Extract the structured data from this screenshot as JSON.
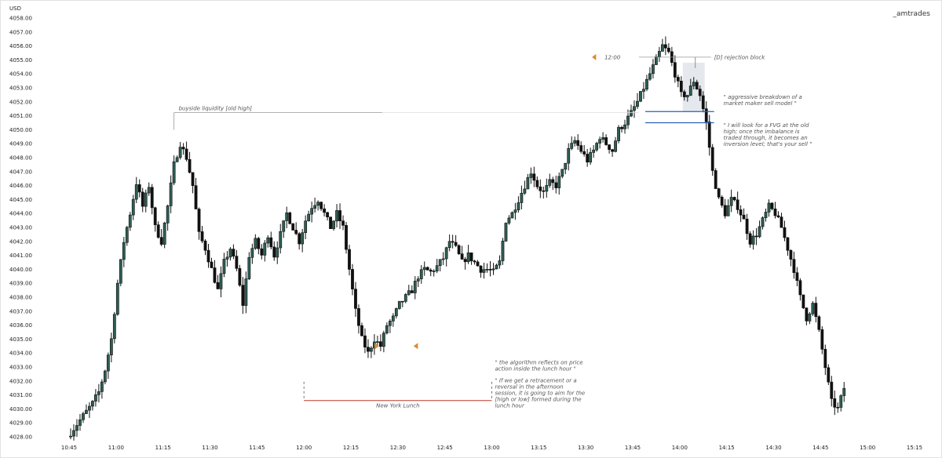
{
  "chart_data": {
    "type": "candlestick",
    "currency": "USD",
    "watermark": "_amtrades",
    "ylim": [
      4028,
      4058
    ],
    "y_ticks": [
      "4028.00",
      "4029.00",
      "4030.00",
      "4031.00",
      "4032.00",
      "4033.00",
      "4034.00",
      "4035.00",
      "4036.00",
      "4037.00",
      "4038.00",
      "4039.00",
      "4040.00",
      "4041.00",
      "4042.00",
      "4043.00",
      "4044.00",
      "4045.00",
      "4046.00",
      "4047.00",
      "4048.00",
      "4049.00",
      "4050.00",
      "4051.00",
      "4052.00",
      "4053.00",
      "4054.00",
      "4055.00",
      "4056.00",
      "4057.00",
      "4058.00"
    ],
    "x_ticks": [
      "10:45",
      "11:00",
      "11:15",
      "11:30",
      "11:45",
      "12:00",
      "12:15",
      "12:30",
      "12:45",
      "13:00",
      "13:15",
      "13:30",
      "13:45",
      "14:00",
      "14:15",
      "14:30",
      "14:45",
      "15:00",
      "15:15"
    ],
    "x_range_minutes": [
      "10:45",
      "15:15"
    ],
    "path": [
      [
        0,
        4028.0
      ],
      [
        2,
        4028.6
      ],
      [
        4,
        4029.2
      ],
      [
        6,
        4029.8
      ],
      [
        8,
        4030.4
      ],
      [
        10,
        4031.2
      ],
      [
        12,
        4032.8
      ],
      [
        14,
        4035.0
      ],
      [
        16,
        4039.0
      ],
      [
        18,
        4042.0
      ],
      [
        20,
        4044.0
      ],
      [
        22,
        4046.2
      ],
      [
        24,
        4044.5
      ],
      [
        26,
        4046.0
      ],
      [
        28,
        4043.0
      ],
      [
        30,
        4042.0
      ],
      [
        32,
        4044.5
      ],
      [
        34,
        4047.5
      ],
      [
        36,
        4049.0
      ],
      [
        38,
        4048.0
      ],
      [
        40,
        4046.0
      ],
      [
        42,
        4042.5
      ],
      [
        44,
        4041.5
      ],
      [
        46,
        4040.0
      ],
      [
        48,
        4038.5
      ],
      [
        50,
        4040.5
      ],
      [
        52,
        4041.5
      ],
      [
        54,
        4040.0
      ],
      [
        56,
        4037.5
      ],
      [
        58,
        4041.0
      ],
      [
        60,
        4042.0
      ],
      [
        62,
        4041.0
      ],
      [
        64,
        4042.5
      ],
      [
        66,
        4041.0
      ],
      [
        68,
        4042.5
      ],
      [
        70,
        4044.0
      ],
      [
        72,
        4043.0
      ],
      [
        74,
        4042.0
      ],
      [
        76,
        4043.5
      ],
      [
        78,
        4044.5
      ],
      [
        80,
        4045.0
      ],
      [
        82,
        4044.0
      ],
      [
        84,
        4043.0
      ],
      [
        86,
        4044.0
      ],
      [
        88,
        4043.0
      ],
      [
        90,
        4040.0
      ],
      [
        92,
        4037.0
      ],
      [
        94,
        4035.0
      ],
      [
        96,
        4034.0
      ],
      [
        98,
        4035.0
      ],
      [
        100,
        4034.5
      ],
      [
        102,
        4036.0
      ],
      [
        104,
        4036.5
      ],
      [
        106,
        4037.5
      ],
      [
        108,
        4038.0
      ],
      [
        110,
        4038.5
      ],
      [
        112,
        4039.5
      ],
      [
        114,
        4040.0
      ],
      [
        116,
        4039.8
      ],
      [
        118,
        4040.2
      ],
      [
        120,
        4040.8
      ],
      [
        122,
        4042.0
      ],
      [
        124,
        4041.5
      ],
      [
        126,
        4040.5
      ],
      [
        128,
        4041.0
      ],
      [
        130,
        4040.5
      ],
      [
        132,
        4040.0
      ],
      [
        134,
        4040.0
      ],
      [
        136,
        4039.8
      ],
      [
        138,
        4040.5
      ],
      [
        140,
        4043.5
      ],
      [
        142,
        4044.0
      ],
      [
        144,
        4045.0
      ],
      [
        146,
        4046.0
      ],
      [
        148,
        4047.0
      ],
      [
        150,
        4046.0
      ],
      [
        152,
        4045.5
      ],
      [
        154,
        4046.2
      ],
      [
        156,
        4046.0
      ],
      [
        158,
        4047.0
      ],
      [
        160,
        4048.5
      ],
      [
        162,
        4049.2
      ],
      [
        164,
        4048.5
      ],
      [
        166,
        4047.8
      ],
      [
        168,
        4048.5
      ],
      [
        170,
        4049.5
      ],
      [
        172,
        4049.0
      ],
      [
        174,
        4048.5
      ],
      [
        176,
        4050.0
      ],
      [
        178,
        4050.5
      ],
      [
        180,
        4051.2
      ],
      [
        182,
        4052.0
      ],
      [
        184,
        4053.0
      ],
      [
        186,
        4054.0
      ],
      [
        188,
        4055.0
      ],
      [
        190,
        4056.0
      ],
      [
        192,
        4055.5
      ],
      [
        194,
        4054.0
      ],
      [
        196,
        4052.5
      ],
      [
        198,
        4052.5
      ],
      [
        200,
        4053.5
      ],
      [
        202,
        4052.5
      ],
      [
        204,
        4050.5
      ],
      [
        206,
        4047.0
      ],
      [
        208,
        4045.0
      ],
      [
        210,
        4044.0
      ],
      [
        212,
        4045.0
      ],
      [
        214,
        4044.5
      ],
      [
        216,
        4043.5
      ],
      [
        218,
        4042.0
      ],
      [
        220,
        4042.5
      ],
      [
        222,
        4043.5
      ],
      [
        224,
        4044.5
      ],
      [
        226,
        4044.0
      ],
      [
        228,
        4043.0
      ],
      [
        230,
        4041.5
      ],
      [
        232,
        4040.0
      ],
      [
        234,
        4038.0
      ],
      [
        236,
        4036.5
      ],
      [
        238,
        4037.5
      ],
      [
        240,
        4035.5
      ],
      [
        242,
        4033.0
      ],
      [
        244,
        4030.5
      ],
      [
        246,
        4030.0
      ],
      [
        248,
        4031.5
      ]
    ],
    "annotations": {
      "buyside": "buyside liquidity [old high]",
      "buyside_level": 4051.0,
      "rejection": "[D] rejection block",
      "rejection_level": 4055.2,
      "rejection_time": "12:00",
      "blue_levels": [
        4051.3,
        4050.5
      ],
      "note1": [
        "\" aggressive breakdown of a",
        "market maker sell model \""
      ],
      "note2": [
        "\" I will look for a FVG at the old",
        "high; once the imbalance is",
        "traded through, it becomes an",
        "inversion level; that's your sell \""
      ],
      "lunch_label": "New York Lunch",
      "lunch_note1": [
        "\" the algorithm reflects on price",
        "action inside the lunch hour \""
      ],
      "lunch_note2": [
        "\" If we get a retracement or a",
        "reversal in the afternoon",
        "session, it is going to aim for the",
        "[high or low] formed during the",
        "lunch hour"
      ]
    }
  }
}
